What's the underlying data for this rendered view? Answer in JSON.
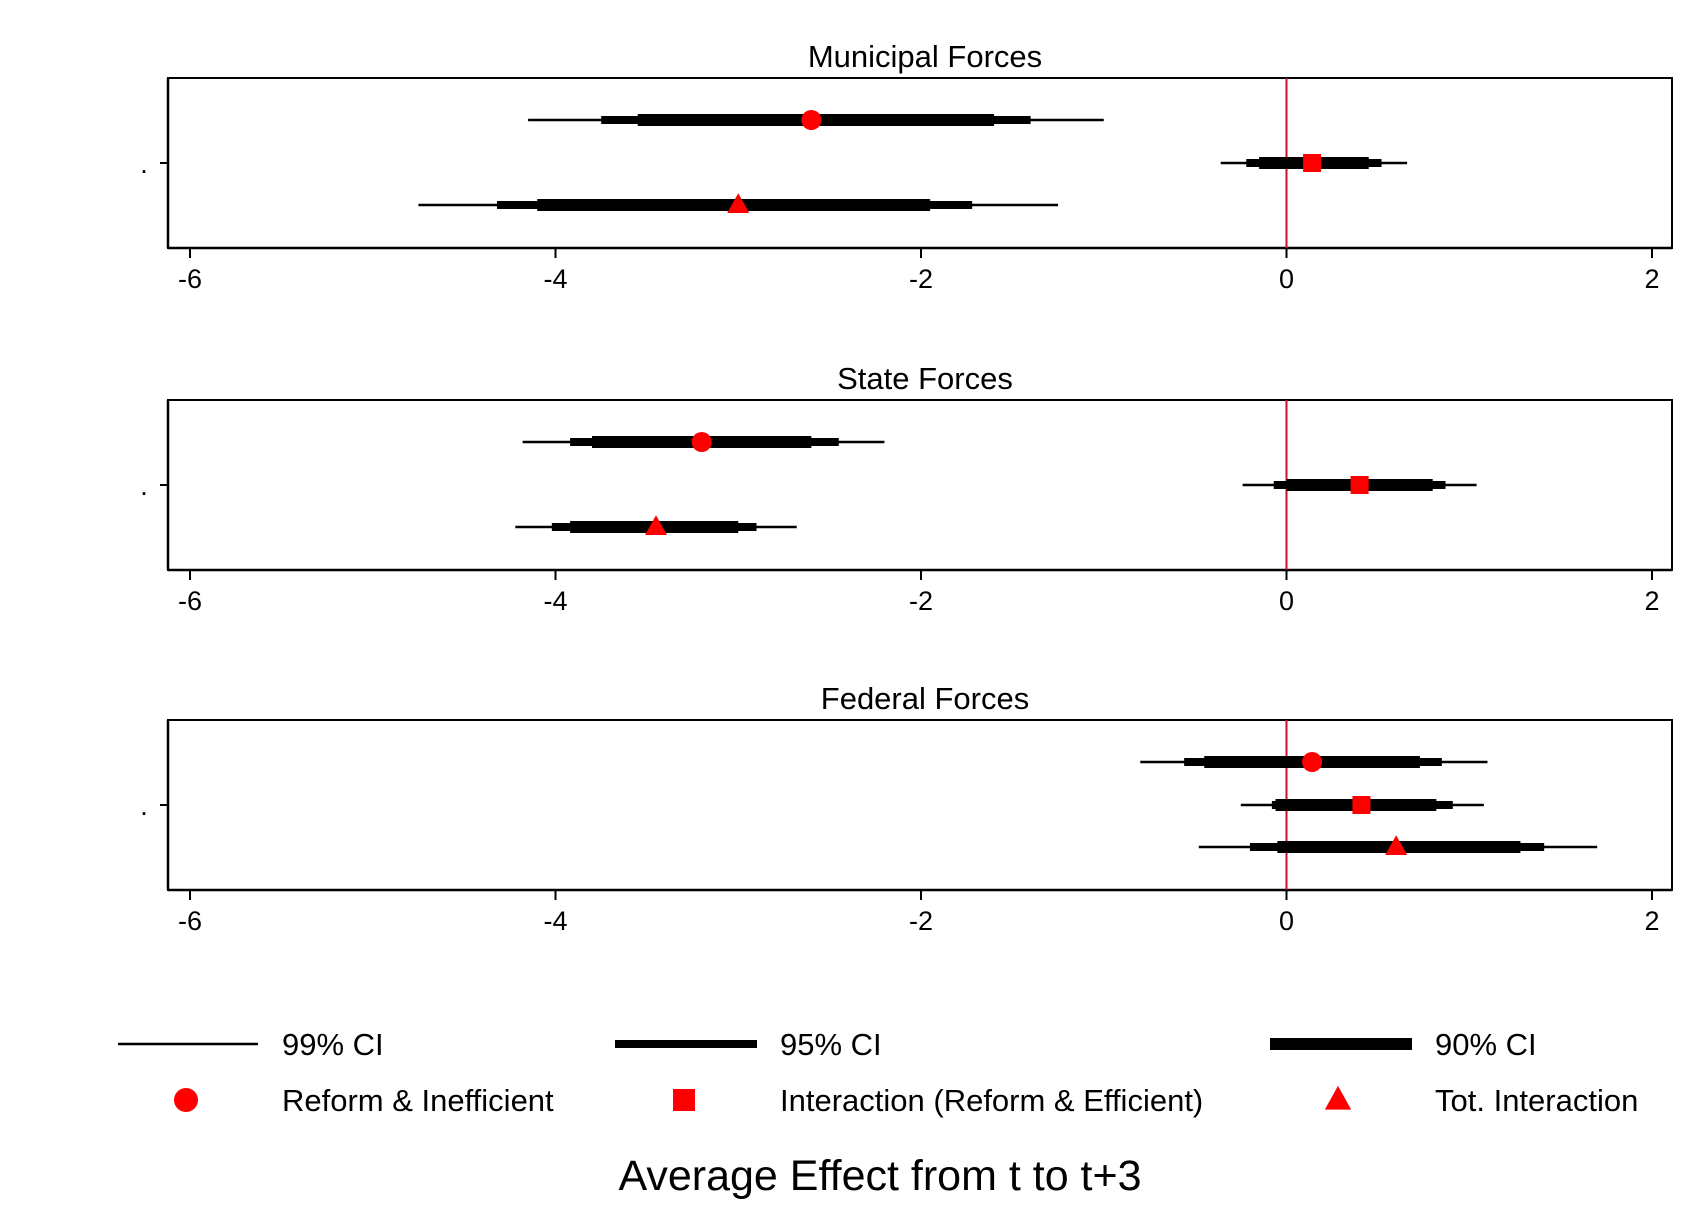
{
  "chart_data": {
    "type": "scatter",
    "subtype": "coefficient-plot",
    "title": "Average Effect from t to t+3",
    "xlim": [
      -6,
      2
    ],
    "xticks": [
      -6,
      -4,
      -2,
      0,
      2
    ],
    "xtick_labels": [
      "-6",
      "-4",
      "-2",
      "0",
      "2"
    ],
    "ytick_label": ".",
    "reference_line": {
      "x": 0,
      "color": "#c8102e"
    },
    "marker_color": "#ff0000",
    "ci_color": "#000000",
    "series": [
      {
        "name": "Reform & Inefficient",
        "marker": "circle"
      },
      {
        "name": "Interaction (Reform & Efficient)",
        "marker": "square"
      },
      {
        "name": "Tot. Interaction",
        "marker": "triangle"
      }
    ],
    "ci_levels": [
      {
        "name": "99% CI",
        "width": "thin"
      },
      {
        "name": "95% CI",
        "width": "medium"
      },
      {
        "name": "90% CI",
        "width": "thick"
      }
    ],
    "panels": [
      {
        "title": "Municipal Forces",
        "points": [
          {
            "series": "Reform & Inefficient",
            "row": 1,
            "estimate": -2.6,
            "ci90": [
              -3.55,
              -1.6
            ],
            "ci95": [
              -3.75,
              -1.4
            ],
            "ci99": [
              -4.15,
              -1.0
            ]
          },
          {
            "series": "Interaction (Reform & Efficient)",
            "row": 2,
            "estimate": 0.14,
            "ci90": [
              -0.15,
              0.45
            ],
            "ci95": [
              -0.22,
              0.52
            ],
            "ci99": [
              -0.36,
              0.66
            ]
          },
          {
            "series": "Tot. Interaction",
            "row": 3,
            "estimate": -3.0,
            "ci90": [
              -4.1,
              -1.95
            ],
            "ci95": [
              -4.32,
              -1.72
            ],
            "ci99": [
              -4.75,
              -1.25
            ]
          }
        ]
      },
      {
        "title": "State Forces",
        "points": [
          {
            "series": "Reform & Inefficient",
            "row": 1,
            "estimate": -3.2,
            "ci90": [
              -3.8,
              -2.6
            ],
            "ci95": [
              -3.92,
              -2.45
            ],
            "ci99": [
              -4.18,
              -2.2
            ]
          },
          {
            "series": "Interaction (Reform & Efficient)",
            "row": 2,
            "estimate": 0.4,
            "ci90": [
              0.0,
              0.8
            ],
            "ci95": [
              -0.07,
              0.87
            ],
            "ci99": [
              -0.24,
              1.04
            ]
          },
          {
            "series": "Tot. Interaction",
            "row": 3,
            "estimate": -3.45,
            "ci90": [
              -3.92,
              -3.0
            ],
            "ci95": [
              -4.02,
              -2.9
            ],
            "ci99": [
              -4.22,
              -2.68
            ]
          }
        ]
      },
      {
        "title": "Federal Forces",
        "points": [
          {
            "series": "Reform & Inefficient",
            "row": 1,
            "estimate": 0.14,
            "ci90": [
              -0.45,
              0.73
            ],
            "ci95": [
              -0.56,
              0.85
            ],
            "ci99": [
              -0.8,
              1.1
            ]
          },
          {
            "series": "Interaction (Reform & Efficient)",
            "row": 2,
            "estimate": 0.41,
            "ci90": [
              -0.06,
              0.82
            ],
            "ci95": [
              -0.08,
              0.91
            ],
            "ci99": [
              -0.25,
              1.08
            ]
          },
          {
            "series": "Tot. Interaction",
            "row": 3,
            "estimate": 0.6,
            "ci90": [
              -0.05,
              1.28
            ],
            "ci95": [
              -0.2,
              1.41
            ],
            "ci99": [
              -0.48,
              1.7
            ]
          }
        ]
      }
    ]
  }
}
